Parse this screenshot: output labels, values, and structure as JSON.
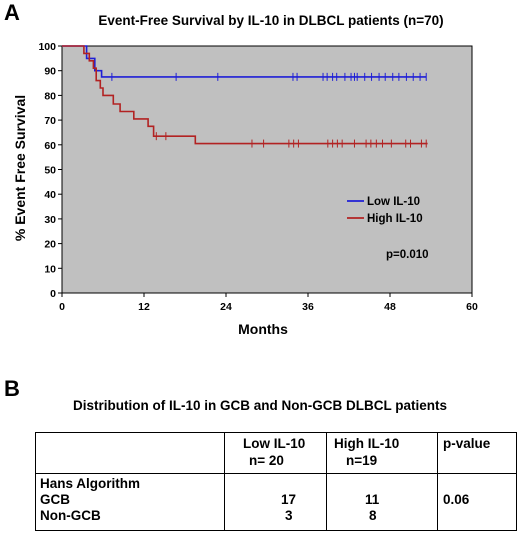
{
  "panel_a": {
    "letter": "A",
    "chart_data": {
      "type": "line",
      "title": "Event-Free Survival by IL-10 in DLBCL patients (n=70)",
      "xlabel": "Months",
      "ylabel": "% Event Free Survival",
      "xlim": [
        0,
        60
      ],
      "ylim": [
        0,
        100
      ],
      "x_ticks": [
        0,
        12,
        24,
        36,
        48,
        60
      ],
      "y_ticks": [
        0,
        10,
        20,
        30,
        40,
        50,
        60,
        70,
        80,
        90,
        100
      ],
      "grid": false,
      "plot_background": "#c0c0c0",
      "legend_position": "right",
      "annotation": "p=0.010",
      "series": [
        {
          "name": "Low IL-10",
          "color": "#1f1fd6",
          "steps": [
            [
              0,
              100
            ],
            [
              3.6,
              100
            ],
            [
              3.6,
              95
            ],
            [
              4.8,
              95
            ],
            [
              4.8,
              90
            ],
            [
              5.8,
              90
            ],
            [
              5.8,
              87.5
            ],
            [
              53.3,
              87.5
            ]
          ],
          "censored": [
            [
              7.3,
              87.5
            ],
            [
              16.7,
              87.5
            ],
            [
              22.8,
              87.5
            ],
            [
              33.8,
              87.5
            ],
            [
              34.4,
              87.5
            ],
            [
              38.2,
              87.5
            ],
            [
              38.8,
              87.5
            ],
            [
              39.6,
              87.5
            ],
            [
              40.2,
              87.5
            ],
            [
              41.4,
              87.5
            ],
            [
              42.3,
              87.5
            ],
            [
              42.8,
              87.5
            ],
            [
              43.2,
              87.5
            ],
            [
              44.3,
              87.5
            ],
            [
              45.3,
              87.5
            ],
            [
              46.4,
              87.5
            ],
            [
              47.3,
              87.5
            ],
            [
              48.4,
              87.5
            ],
            [
              49.3,
              87.5
            ],
            [
              50.4,
              87.5
            ],
            [
              51.4,
              87.5
            ],
            [
              52.4,
              87.5
            ],
            [
              53.3,
              87.5
            ]
          ]
        },
        {
          "name": "High IL-10",
          "color": "#b22222",
          "steps": [
            [
              0,
              100
            ],
            [
              3.2,
              100
            ],
            [
              3.2,
              97
            ],
            [
              4.0,
              97
            ],
            [
              4.0,
              94
            ],
            [
              4.6,
              94
            ],
            [
              4.6,
              91
            ],
            [
              5.0,
              91
            ],
            [
              5.0,
              86
            ],
            [
              5.6,
              86
            ],
            [
              5.6,
              83
            ],
            [
              6.0,
              83
            ],
            [
              6.0,
              80
            ],
            [
              7.5,
              80
            ],
            [
              7.5,
              76.5
            ],
            [
              8.5,
              76.5
            ],
            [
              8.5,
              73.5
            ],
            [
              10.5,
              73.5
            ],
            [
              10.5,
              70.5
            ],
            [
              12.6,
              70.5
            ],
            [
              12.6,
              67.5
            ],
            [
              13.4,
              67.5
            ],
            [
              13.4,
              63.5
            ],
            [
              19.5,
              63.5
            ],
            [
              19.5,
              60.5
            ],
            [
              53.5,
              60.5
            ]
          ],
          "censored": [
            [
              13.8,
              63.5
            ],
            [
              15.2,
              63.5
            ],
            [
              27.8,
              60.5
            ],
            [
              29.5,
              60.5
            ],
            [
              33.2,
              60.5
            ],
            [
              33.9,
              60.5
            ],
            [
              34.6,
              60.5
            ],
            [
              38.9,
              60.5
            ],
            [
              39.6,
              60.5
            ],
            [
              40.3,
              60.5
            ],
            [
              41.0,
              60.5
            ],
            [
              42.8,
              60.5
            ],
            [
              44.5,
              60.5
            ],
            [
              45.2,
              60.5
            ],
            [
              46.0,
              60.5
            ],
            [
              46.9,
              60.5
            ],
            [
              48.2,
              60.5
            ],
            [
              50.3,
              60.5
            ],
            [
              51.0,
              60.5
            ],
            [
              52.6,
              60.5
            ],
            [
              53.3,
              60.5
            ]
          ]
        }
      ]
    }
  },
  "panel_b": {
    "letter": "B",
    "caption": "Distribution of IL-10 in GCB and Non-GCB DLBCL patients",
    "table": {
      "headers": [
        {
          "line1": "",
          "line2": ""
        },
        {
          "line1": "Low IL-10",
          "line2": "n= 20"
        },
        {
          "line1": "High IL-10",
          "line2": "n=19"
        },
        {
          "line1": "p-value",
          "line2": ""
        }
      ],
      "group_label": "Hans Algorithm",
      "rows": [
        {
          "label": "GCB",
          "low": "17",
          "high": "11",
          "p": "0.06"
        },
        {
          "label": "Non-GCB",
          "low": "3",
          "high": "8",
          "p": ""
        }
      ]
    }
  }
}
